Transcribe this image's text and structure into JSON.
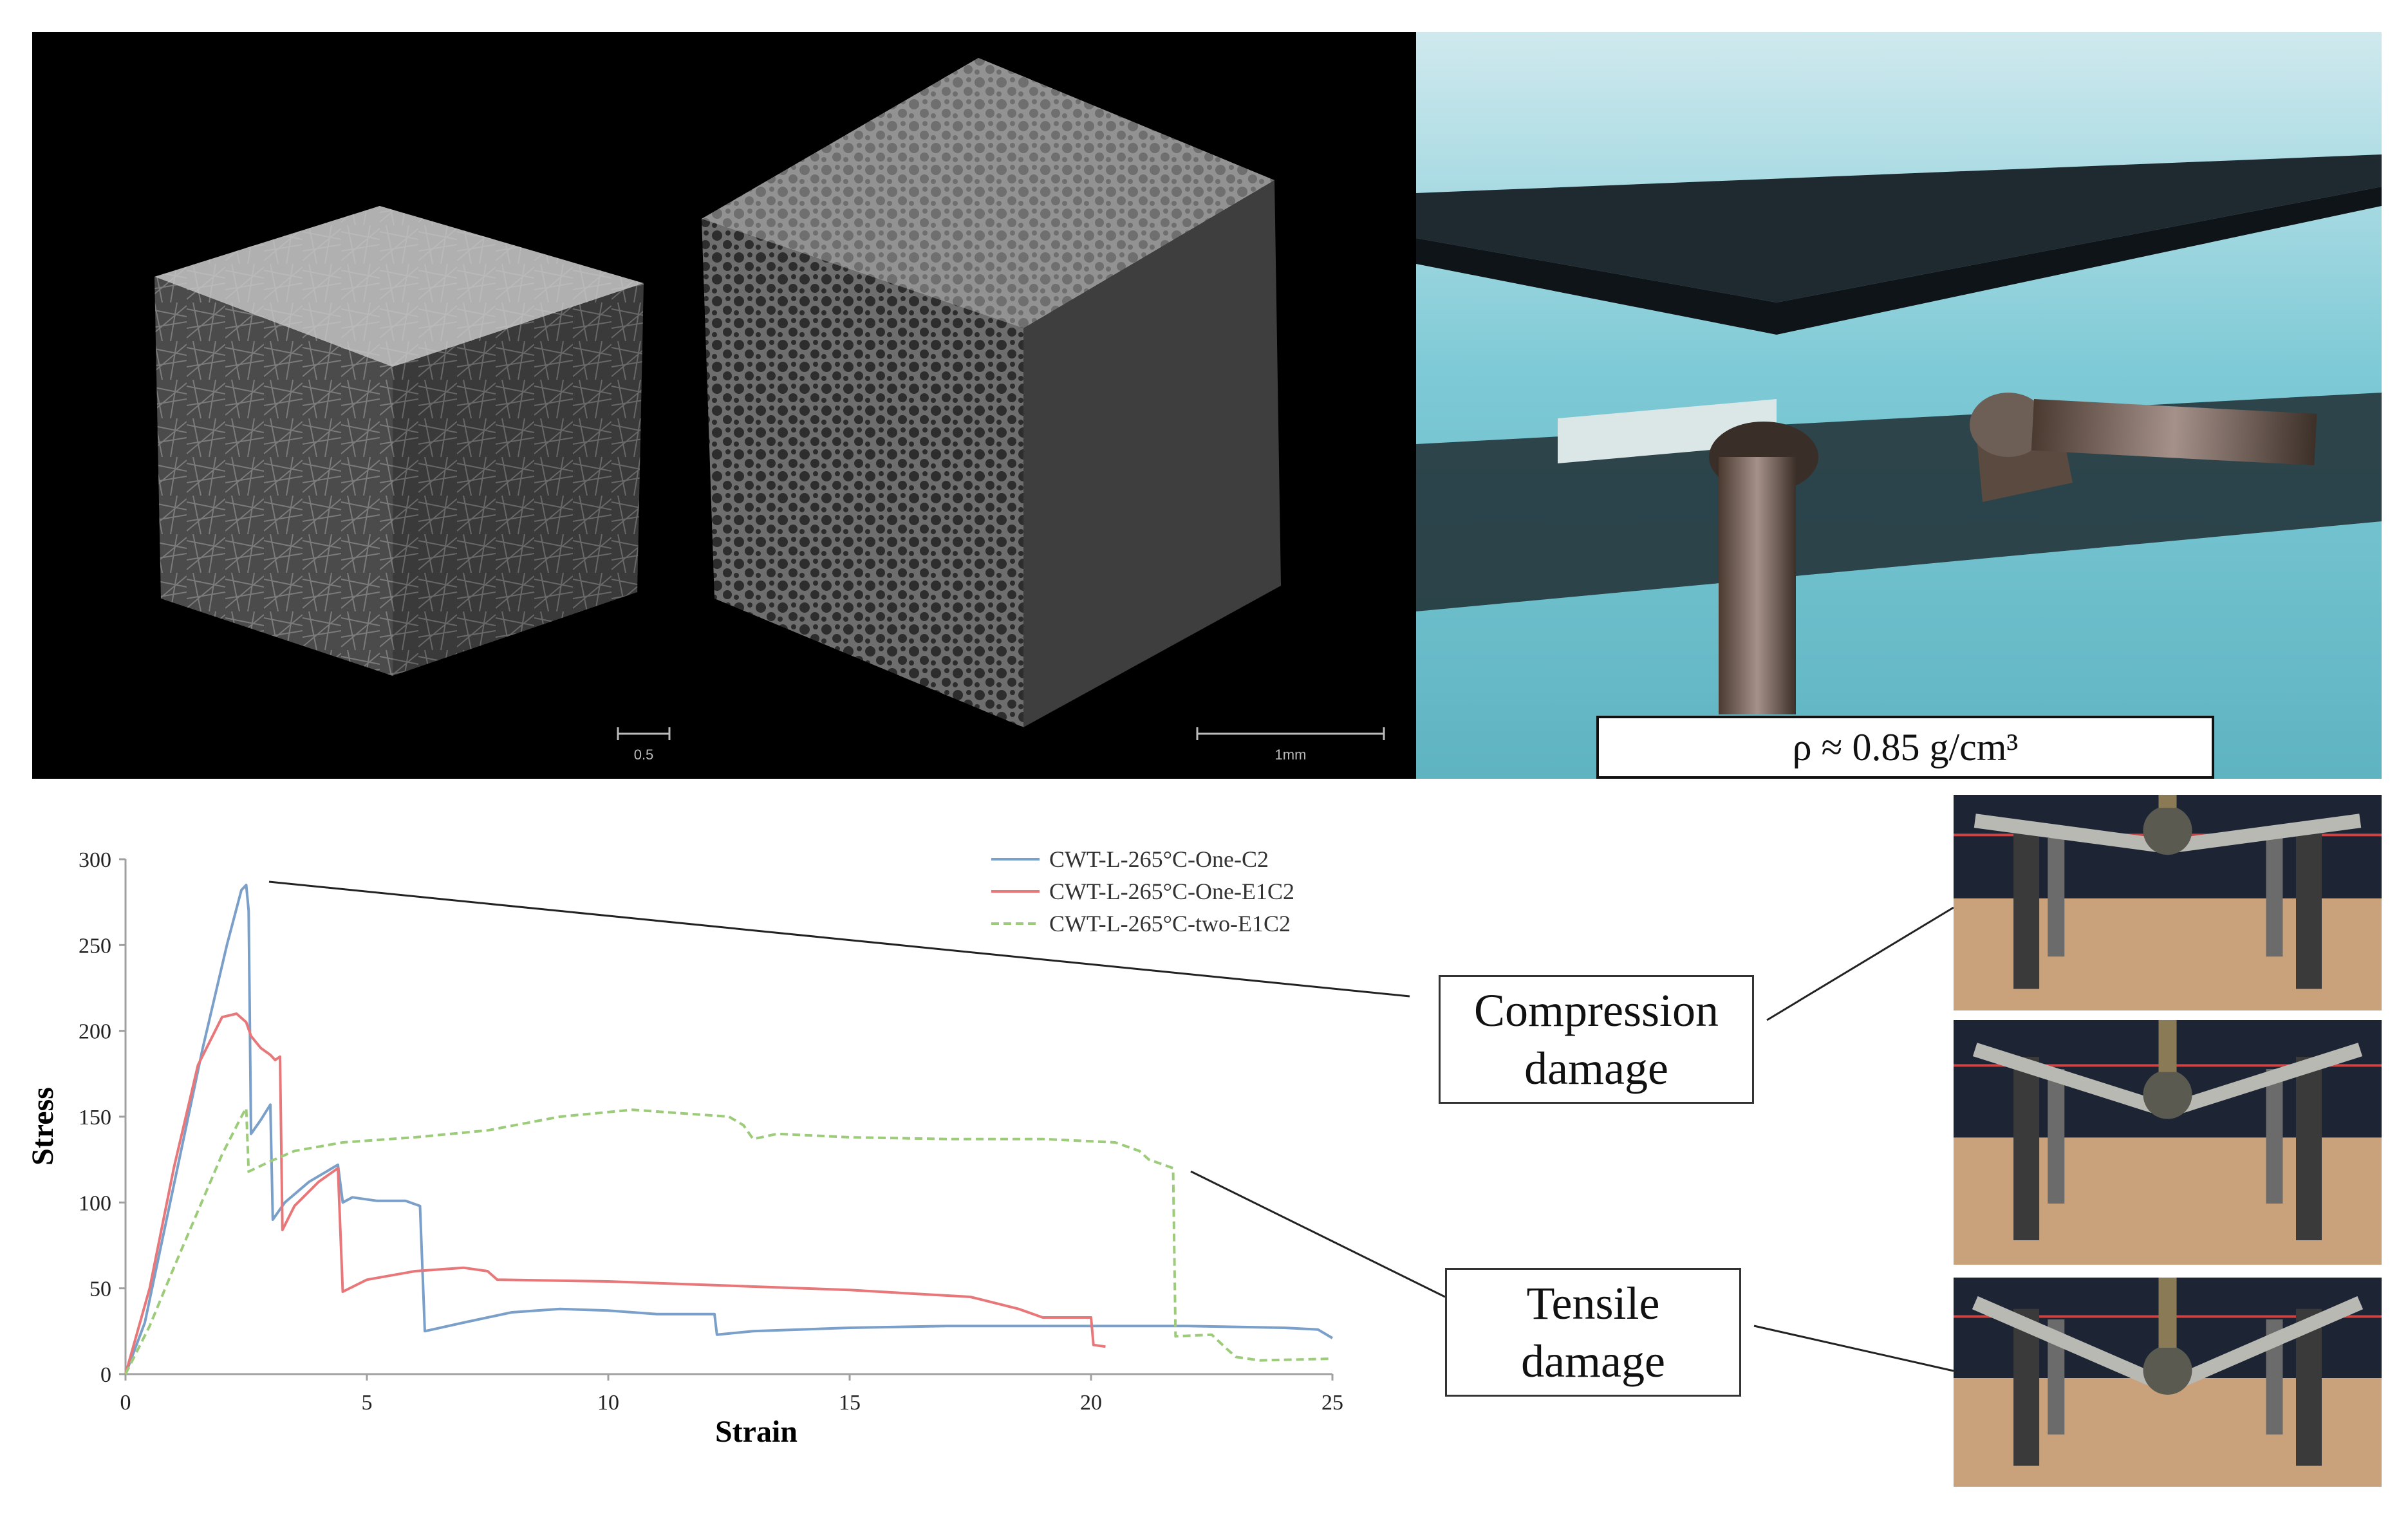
{
  "ct_panel": {
    "left_scale_label": "0.5",
    "right_scale_label": "1mm"
  },
  "photo_panel": {
    "density_label": "ρ ≈ 0.85 g/cm³"
  },
  "callouts": {
    "compression": [
      "Compression",
      "damage"
    ],
    "tensile": [
      "Tensile",
      "damage"
    ]
  },
  "colors": {
    "series_blue": "#7a9fc9",
    "series_red": "#e8777a",
    "series_green": "#9ccc7a",
    "axis": "#a0a0a0",
    "callout_line": "#222222"
  },
  "chart_data": {
    "type": "line",
    "title": "",
    "xlabel": "Strain",
    "ylabel": "Stress",
    "xlim": [
      0,
      25
    ],
    "ylim": [
      0,
      300
    ],
    "xticks": [
      0,
      5,
      10,
      15,
      20,
      25
    ],
    "yticks": [
      0,
      50,
      100,
      150,
      200,
      250,
      300
    ],
    "grid": false,
    "legend_position": "top-right",
    "series": [
      {
        "name": "CWT-L-265°C-One-C2",
        "color": "#7a9fc9",
        "dash": false,
        "points": [
          [
            0,
            0
          ],
          [
            0.4,
            30
          ],
          [
            1.0,
            110
          ],
          [
            1.6,
            190
          ],
          [
            2.1,
            250
          ],
          [
            2.4,
            282
          ],
          [
            2.5,
            285
          ],
          [
            2.55,
            270
          ],
          [
            2.6,
            140
          ],
          [
            2.8,
            148
          ],
          [
            3.0,
            157
          ],
          [
            3.05,
            90
          ],
          [
            3.3,
            100
          ],
          [
            3.8,
            112
          ],
          [
            4.4,
            122
          ],
          [
            4.5,
            100
          ],
          [
            4.7,
            103
          ],
          [
            5.2,
            101
          ],
          [
            5.8,
            101
          ],
          [
            6.1,
            98
          ],
          [
            6.2,
            25
          ],
          [
            7.0,
            30
          ],
          [
            8.0,
            36
          ],
          [
            9.0,
            38
          ],
          [
            10.0,
            37
          ],
          [
            11.0,
            35
          ],
          [
            12.2,
            35
          ],
          [
            12.25,
            23
          ],
          [
            13.0,
            25
          ],
          [
            15.0,
            27
          ],
          [
            17.0,
            28
          ],
          [
            20.0,
            28
          ],
          [
            22.0,
            28
          ],
          [
            24.0,
            27
          ],
          [
            24.7,
            26
          ],
          [
            25,
            21
          ]
        ]
      },
      {
        "name": "CWT-L-265°C-One-E1C2",
        "color": "#e8777a",
        "dash": false,
        "points": [
          [
            0,
            0
          ],
          [
            0.5,
            50
          ],
          [
            1.0,
            120
          ],
          [
            1.5,
            180
          ],
          [
            2.0,
            208
          ],
          [
            2.3,
            210
          ],
          [
            2.5,
            205
          ],
          [
            2.6,
            197
          ],
          [
            2.8,
            190
          ],
          [
            3.0,
            186
          ],
          [
            3.1,
            183
          ],
          [
            3.2,
            185
          ],
          [
            3.25,
            84
          ],
          [
            3.5,
            98
          ],
          [
            4.0,
            112
          ],
          [
            4.4,
            120
          ],
          [
            4.5,
            48
          ],
          [
            5.0,
            55
          ],
          [
            6.0,
            60
          ],
          [
            7.0,
            62
          ],
          [
            7.5,
            60
          ],
          [
            7.7,
            55
          ],
          [
            10.0,
            54
          ],
          [
            12.0,
            52
          ],
          [
            15.0,
            49
          ],
          [
            17.5,
            45
          ],
          [
            18.5,
            38
          ],
          [
            19.0,
            33
          ],
          [
            20.0,
            33
          ],
          [
            20.05,
            17
          ],
          [
            20.3,
            16
          ]
        ]
      },
      {
        "name": "CWT-L-265°C-two-E1C2",
        "color": "#9ccc7a",
        "dash": true,
        "points": [
          [
            0,
            0
          ],
          [
            0.5,
            28
          ],
          [
            1.0,
            62
          ],
          [
            1.5,
            95
          ],
          [
            2.0,
            128
          ],
          [
            2.4,
            150
          ],
          [
            2.5,
            155
          ],
          [
            2.55,
            118
          ],
          [
            3.0,
            124
          ],
          [
            3.5,
            130
          ],
          [
            4.5,
            135
          ],
          [
            6.0,
            138
          ],
          [
            7.5,
            142
          ],
          [
            9.0,
            150
          ],
          [
            10.5,
            154
          ],
          [
            12.5,
            150
          ],
          [
            12.8,
            145
          ],
          [
            13.0,
            137
          ],
          [
            13.5,
            140
          ],
          [
            15.0,
            138
          ],
          [
            17.0,
            137
          ],
          [
            19.0,
            137
          ],
          [
            20.5,
            135
          ],
          [
            21.0,
            130
          ],
          [
            21.2,
            125
          ],
          [
            21.7,
            120
          ],
          [
            21.75,
            22
          ],
          [
            22.5,
            23
          ],
          [
            22.8,
            15
          ],
          [
            23.0,
            10
          ],
          [
            23.5,
            8
          ],
          [
            25,
            9
          ]
        ]
      }
    ]
  }
}
